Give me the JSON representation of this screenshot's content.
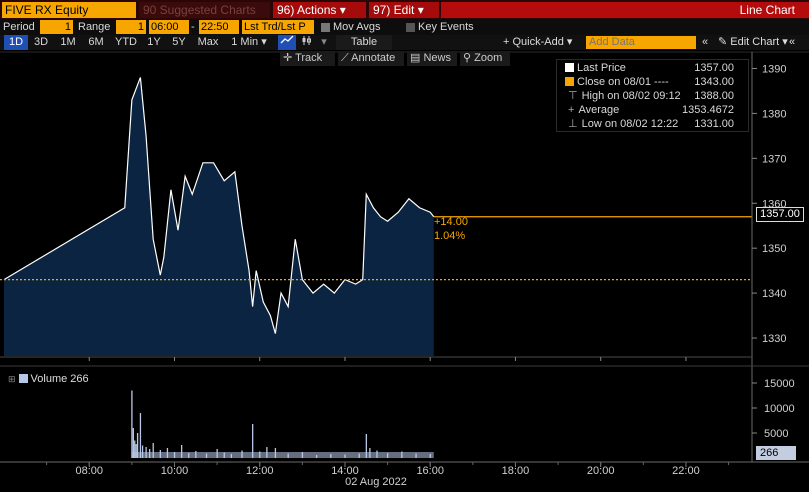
{
  "header": {
    "security": "FIVE RX Equity",
    "suggested_charts": "90 Suggested Charts",
    "actions": "96) Actions ▾",
    "edit": "97) Edit ▾",
    "chart_type": "Line Chart"
  },
  "controls": {
    "period_label": "Period",
    "period_value": "1",
    "range_label": "Range",
    "range_value": "1",
    "start_time": "06:00",
    "dash": "-",
    "end_time": "22:50",
    "mode": "Lst Trd/Lst P",
    "mov_avgs": "Mov Avgs",
    "key_events": "Key Events"
  },
  "ranges": [
    "1D",
    "3D",
    "1M",
    "6M",
    "YTD",
    "1Y",
    "5Y",
    "Max",
    "1 Min ▾"
  ],
  "toolbar": {
    "table": "Table",
    "quick_add": "+ Quick-Add ▾",
    "add_data_placeholder": "Add Data",
    "nav_left": "«",
    "edit_chart": "✎ Edit Chart ▾",
    "nav_right": "«"
  },
  "tools": {
    "track": "✛ Track",
    "annotate": "⟋ Annotate",
    "news": "▤ News",
    "zoom": "⚲ Zoom"
  },
  "legend": {
    "last_price_label": "Last Price",
    "last_price_value": "1357.00",
    "close_label": "Close on 08/01 ----",
    "close_value": "1343.00",
    "high_label": "High on 08/02 09:12",
    "high_value": "1388.00",
    "average_label": "Average",
    "average_value": "1353.4672",
    "low_label": "Low on 08/02 12:22",
    "low_value": "1331.00"
  },
  "price_tag": "1357.00",
  "change": {
    "abs": "+14.00",
    "pct": "1.04%"
  },
  "volume": {
    "label": "Volume 266",
    "tag": "266"
  },
  "date_label": "02 Aug 2022",
  "colors": {
    "orange": "#f7a600",
    "area_fill": "#0b2442",
    "line": "#ffffff",
    "volume": "#b8c8e8",
    "accent_red": "#b40c0c"
  },
  "chart_data": [
    {
      "type": "area",
      "title": "",
      "x_ticks": [
        "08:00",
        "10:00",
        "12:00",
        "14:00",
        "16:00",
        "18:00",
        "20:00",
        "22:00"
      ],
      "y_ticks": [
        1330,
        1340,
        1350,
        1360,
        1370,
        1380,
        1390
      ],
      "ylim": [
        1326,
        1393
      ],
      "reference_lines": {
        "previous_close": 1343,
        "last_price": 1357
      },
      "points": [
        [
          "06:00",
          1343
        ],
        [
          "08:50",
          1359
        ],
        [
          "09:00",
          1383
        ],
        [
          "09:12",
          1388
        ],
        [
          "09:20",
          1375
        ],
        [
          "09:30",
          1352
        ],
        [
          "09:40",
          1344
        ],
        [
          "09:45",
          1348
        ],
        [
          "09:55",
          1363
        ],
        [
          "10:05",
          1354
        ],
        [
          "10:15",
          1366
        ],
        [
          "10:25",
          1362
        ],
        [
          "10:40",
          1369
        ],
        [
          "10:55",
          1369
        ],
        [
          "11:10",
          1365
        ],
        [
          "11:25",
          1367
        ],
        [
          "11:35",
          1355
        ],
        [
          "11:45",
          1345
        ],
        [
          "11:50",
          1337
        ],
        [
          "11:55",
          1345
        ],
        [
          "12:05",
          1338
        ],
        [
          "12:15",
          1335
        ],
        [
          "12:22",
          1331
        ],
        [
          "12:30",
          1340
        ],
        [
          "12:40",
          1337
        ],
        [
          "12:50",
          1352
        ],
        [
          "13:00",
          1343
        ],
        [
          "13:15",
          1340
        ],
        [
          "13:30",
          1342
        ],
        [
          "13:45",
          1340
        ],
        [
          "14:00",
          1343
        ],
        [
          "14:15",
          1342
        ],
        [
          "14:25",
          1343
        ],
        [
          "14:30",
          1362
        ],
        [
          "14:40",
          1359
        ],
        [
          "14:50",
          1357
        ],
        [
          "15:00",
          1356
        ],
        [
          "15:15",
          1358
        ],
        [
          "15:30",
          1361
        ],
        [
          "15:45",
          1359
        ],
        [
          "16:00",
          1358
        ],
        [
          "16:05",
          1357
        ]
      ]
    },
    {
      "type": "bar",
      "title": "Volume",
      "y_ticks": [
        5000,
        10000,
        15000
      ],
      "ylim": [
        0,
        18000
      ],
      "x_ticks": [
        "08:00",
        "10:00",
        "12:00",
        "14:00",
        "16:00",
        "18:00",
        "20:00",
        "22:00"
      ],
      "bars": [
        [
          "09:00",
          13500
        ],
        [
          "09:02",
          6000
        ],
        [
          "09:04",
          3500
        ],
        [
          "09:06",
          2800
        ],
        [
          "09:08",
          5000
        ],
        [
          "09:12",
          9000
        ],
        [
          "09:15",
          2500
        ],
        [
          "09:20",
          2200
        ],
        [
          "09:25",
          1800
        ],
        [
          "09:30",
          3000
        ],
        [
          "09:40",
          1600
        ],
        [
          "09:50",
          2000
        ],
        [
          "10:00",
          1200
        ],
        [
          "10:10",
          2600
        ],
        [
          "10:20",
          1000
        ],
        [
          "10:30",
          1400
        ],
        [
          "10:45",
          900
        ],
        [
          "11:00",
          1800
        ],
        [
          "11:10",
          1100
        ],
        [
          "11:20",
          800
        ],
        [
          "11:35",
          1500
        ],
        [
          "11:50",
          6800
        ],
        [
          "12:00",
          1300
        ],
        [
          "12:10",
          2200
        ],
        [
          "12:22",
          2000
        ],
        [
          "12:40",
          900
        ],
        [
          "13:00",
          1200
        ],
        [
          "13:20",
          600
        ],
        [
          "13:40",
          800
        ],
        [
          "14:00",
          700
        ],
        [
          "14:20",
          900
        ],
        [
          "14:30",
          4800
        ],
        [
          "14:35",
          2000
        ],
        [
          "14:45",
          1500
        ],
        [
          "15:00",
          1000
        ],
        [
          "15:20",
          1300
        ],
        [
          "15:40",
          900
        ],
        [
          "16:00",
          800
        ]
      ]
    }
  ]
}
